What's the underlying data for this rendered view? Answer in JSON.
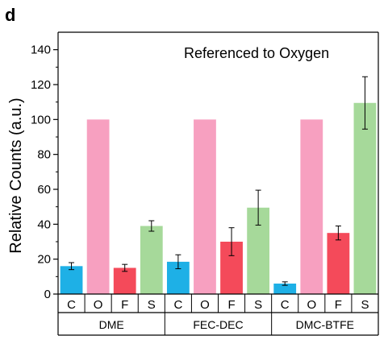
{
  "panel_label": "d",
  "colors": {
    "C": "#1eb0e6",
    "O": "#f7a0c0",
    "F": "#f44a5a",
    "S": "#a6d99a",
    "axis": "#000000"
  },
  "chart_data": {
    "type": "bar",
    "ylabel": "Relative Counts (a.u.)",
    "annotation": "Referenced to Oxygen",
    "ylim": [
      0,
      150
    ],
    "yticks": [
      0,
      20,
      40,
      60,
      80,
      100,
      120,
      140
    ],
    "groups": [
      "DME",
      "FEC-DEC",
      "DMC-BTFE"
    ],
    "categories": [
      "C",
      "O",
      "F",
      "S"
    ],
    "bars": [
      {
        "group": "DME",
        "category": "C",
        "value": 16,
        "error": 2
      },
      {
        "group": "DME",
        "category": "O",
        "value": 100,
        "error": 0
      },
      {
        "group": "DME",
        "category": "F",
        "value": 15,
        "error": 2
      },
      {
        "group": "DME",
        "category": "S",
        "value": 39,
        "error": 3
      },
      {
        "group": "FEC-DEC",
        "category": "C",
        "value": 18.5,
        "error": 4
      },
      {
        "group": "FEC-DEC",
        "category": "O",
        "value": 100,
        "error": 0
      },
      {
        "group": "FEC-DEC",
        "category": "F",
        "value": 30,
        "error": 8
      },
      {
        "group": "FEC-DEC",
        "category": "S",
        "value": 49.5,
        "error": 10
      },
      {
        "group": "DMC-BTFE",
        "category": "C",
        "value": 6,
        "error": 1
      },
      {
        "group": "DMC-BTFE",
        "category": "O",
        "value": 100,
        "error": 0
      },
      {
        "group": "DMC-BTFE",
        "category": "F",
        "value": 35,
        "error": 4
      },
      {
        "group": "DMC-BTFE",
        "category": "S",
        "value": 109.5,
        "error": 15
      }
    ]
  }
}
